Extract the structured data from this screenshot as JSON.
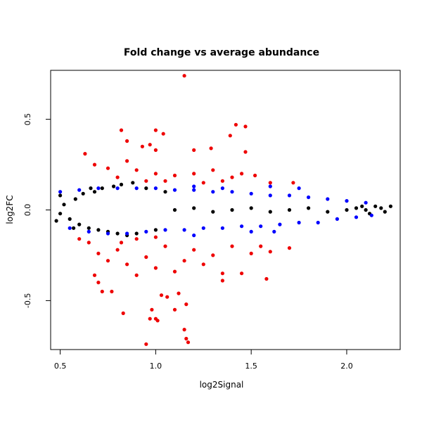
{
  "chart_data": {
    "type": "scatter",
    "title": "Fold change vs average abundance",
    "xlabel": "log2Signal",
    "ylabel": "log2FC",
    "xlim": [
      0.45,
      2.28
    ],
    "ylim": [
      -0.77,
      0.77
    ],
    "xticks": [
      0.5,
      1.0,
      1.5,
      2.0
    ],
    "xtick_labels": [
      "0.5",
      "1.0",
      "1.5",
      "2.0"
    ],
    "yticks": [
      -0.5,
      0.0,
      0.5
    ],
    "ytick_labels": [
      "-0.5",
      "0.0",
      "0.5"
    ],
    "grid": false,
    "legend": "none",
    "series": [
      {
        "color": "#000000",
        "values": [
          [
            0.5,
            -0.02
          ],
          [
            0.52,
            0.03
          ],
          [
            0.55,
            -0.05
          ],
          [
            0.58,
            0.06
          ],
          [
            0.6,
            -0.08
          ],
          [
            0.62,
            0.09
          ],
          [
            0.65,
            -0.1
          ],
          [
            0.68,
            0.1
          ],
          [
            0.7,
            -0.11
          ],
          [
            0.72,
            0.12
          ],
          [
            0.75,
            -0.12
          ],
          [
            0.78,
            0.13
          ],
          [
            0.8,
            -0.13
          ],
          [
            0.82,
            0.14
          ],
          [
            0.85,
            -0.14
          ],
          [
            0.88,
            0.15
          ],
          [
            0.9,
            -0.13
          ],
          [
            0.95,
            0.12
          ],
          [
            1.0,
            -0.11
          ],
          [
            1.05,
            0.1
          ],
          [
            0.5,
            0.08
          ],
          [
            0.48,
            -0.06
          ],
          [
            0.57,
            -0.1
          ],
          [
            0.66,
            0.12
          ],
          [
            1.1,
            0.0
          ],
          [
            1.2,
            0.01
          ],
          [
            1.3,
            -0.01
          ],
          [
            1.4,
            0.0
          ],
          [
            1.5,
            0.01
          ],
          [
            1.6,
            -0.01
          ],
          [
            1.7,
            0.0
          ],
          [
            1.8,
            0.01
          ],
          [
            1.9,
            -0.01
          ],
          [
            2.0,
            0.0
          ],
          [
            2.05,
            0.01
          ],
          [
            2.1,
            0.0
          ],
          [
            2.15,
            0.02
          ],
          [
            2.18,
            0.01
          ],
          [
            2.2,
            -0.01
          ],
          [
            2.23,
            0.02
          ],
          [
            2.12,
            -0.02
          ],
          [
            2.08,
            0.02
          ]
        ]
      },
      {
        "color": "#0000ff",
        "values": [
          [
            0.5,
            0.1
          ],
          [
            0.55,
            -0.1
          ],
          [
            0.6,
            0.11
          ],
          [
            0.65,
            -0.12
          ],
          [
            0.7,
            0.12
          ],
          [
            0.75,
            -0.13
          ],
          [
            0.8,
            0.12
          ],
          [
            0.85,
            -0.13
          ],
          [
            0.9,
            0.12
          ],
          [
            0.95,
            -0.12
          ],
          [
            1.0,
            0.12
          ],
          [
            1.05,
            -0.11
          ],
          [
            1.1,
            0.11
          ],
          [
            1.15,
            -0.11
          ],
          [
            1.2,
            0.11
          ],
          [
            1.25,
            -0.1
          ],
          [
            1.3,
            0.1
          ],
          [
            1.35,
            -0.1
          ],
          [
            1.4,
            0.1
          ],
          [
            1.45,
            -0.09
          ],
          [
            1.5,
            0.09
          ],
          [
            1.55,
            -0.09
          ],
          [
            1.6,
            0.08
          ],
          [
            1.65,
            -0.08
          ],
          [
            1.7,
            0.08
          ],
          [
            1.75,
            -0.07
          ],
          [
            1.8,
            0.07
          ],
          [
            1.85,
            -0.07
          ],
          [
            1.9,
            0.06
          ],
          [
            1.95,
            -0.05
          ],
          [
            2.0,
            0.05
          ],
          [
            2.05,
            -0.04
          ],
          [
            2.1,
            0.04
          ],
          [
            2.13,
            -0.03
          ],
          [
            1.2,
            0.13
          ],
          [
            1.35,
            0.12
          ],
          [
            1.6,
            0.13
          ],
          [
            1.75,
            0.12
          ],
          [
            1.2,
            -0.14
          ],
          [
            1.5,
            -0.12
          ],
          [
            1.62,
            -0.12
          ]
        ]
      },
      {
        "color": "#ee0000",
        "values": [
          [
            1.15,
            0.74
          ],
          [
            0.82,
            0.44
          ],
          [
            1.0,
            0.44
          ],
          [
            1.42,
            0.47
          ],
          [
            1.47,
            0.46
          ],
          [
            1.04,
            0.42
          ],
          [
            1.39,
            0.41
          ],
          [
            0.85,
            0.38
          ],
          [
            0.97,
            0.36
          ],
          [
            0.63,
            0.31
          ],
          [
            0.93,
            0.35
          ],
          [
            1.0,
            0.33
          ],
          [
            1.2,
            0.33
          ],
          [
            1.29,
            0.34
          ],
          [
            1.47,
            0.32
          ],
          [
            0.68,
            0.25
          ],
          [
            0.75,
            0.23
          ],
          [
            0.85,
            0.27
          ],
          [
            0.9,
            0.22
          ],
          [
            1.0,
            0.2
          ],
          [
            1.1,
            0.19
          ],
          [
            1.2,
            0.2
          ],
          [
            1.3,
            0.22
          ],
          [
            1.4,
            0.18
          ],
          [
            1.45,
            0.2
          ],
          [
            1.52,
            0.19
          ],
          [
            1.6,
            0.15
          ],
          [
            1.72,
            0.15
          ],
          [
            0.8,
            0.18
          ],
          [
            0.95,
            0.16
          ],
          [
            1.05,
            0.16
          ],
          [
            1.25,
            0.15
          ],
          [
            1.35,
            0.16
          ],
          [
            0.6,
            -0.16
          ],
          [
            0.65,
            -0.18
          ],
          [
            0.7,
            -0.24
          ],
          [
            0.75,
            -0.28
          ],
          [
            0.8,
            -0.22
          ],
          [
            0.85,
            -0.3
          ],
          [
            0.9,
            -0.36
          ],
          [
            0.95,
            -0.26
          ],
          [
            1.0,
            -0.32
          ],
          [
            1.05,
            -0.2
          ],
          [
            1.1,
            -0.34
          ],
          [
            1.15,
            -0.28
          ],
          [
            1.2,
            -0.22
          ],
          [
            1.25,
            -0.3
          ],
          [
            1.3,
            -0.25
          ],
          [
            1.35,
            -0.35
          ],
          [
            1.4,
            -0.2
          ],
          [
            1.45,
            -0.35
          ],
          [
            1.5,
            -0.24
          ],
          [
            1.55,
            -0.2
          ],
          [
            1.6,
            -0.23
          ],
          [
            1.7,
            -0.21
          ],
          [
            0.68,
            -0.36
          ],
          [
            0.72,
            -0.45
          ],
          [
            0.7,
            -0.4
          ],
          [
            0.83,
            -0.57
          ],
          [
            0.77,
            -0.45
          ],
          [
            0.98,
            -0.55
          ],
          [
            1.0,
            -0.6
          ],
          [
            1.03,
            -0.47
          ],
          [
            1.06,
            -0.48
          ],
          [
            1.1,
            -0.55
          ],
          [
            1.12,
            -0.46
          ],
          [
            1.16,
            -0.52
          ],
          [
            1.15,
            -0.66
          ],
          [
            1.16,
            -0.71
          ],
          [
            1.17,
            -0.73
          ],
          [
            0.95,
            -0.74
          ],
          [
            1.01,
            -0.61
          ],
          [
            0.97,
            -0.6
          ],
          [
            1.35,
            -0.39
          ],
          [
            1.58,
            -0.38
          ],
          [
            0.82,
            -0.18
          ],
          [
            0.9,
            -0.16
          ],
          [
            1.0,
            -0.15
          ]
        ]
      }
    ]
  }
}
